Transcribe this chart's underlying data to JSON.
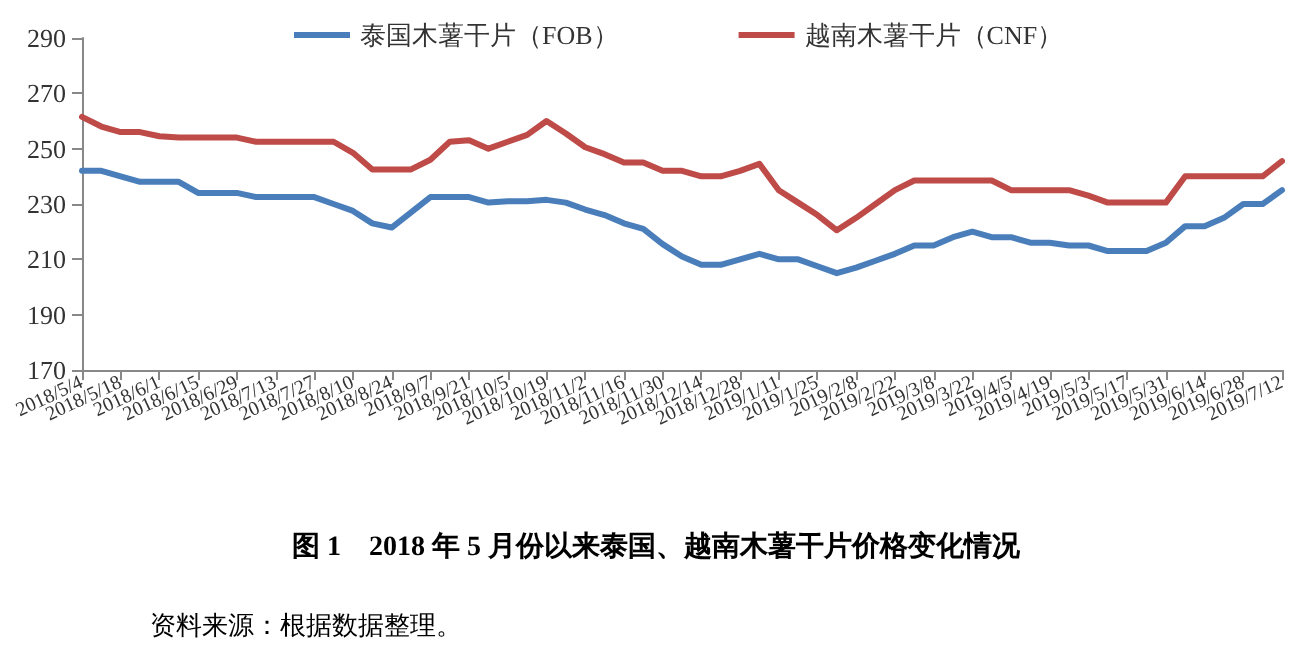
{
  "chart_data": {
    "type": "line",
    "title": "图 1　2018 年 5 月份以来泰国、越南木薯干片价格变化情况",
    "annotations": [
      "资料来源：根据数据整理。"
    ],
    "categories": [
      "2018/5/4",
      null,
      "2018/5/18",
      null,
      "2018/6/1",
      null,
      "2018/6/15",
      null,
      "2018/6/29",
      null,
      "2018/7/13",
      null,
      "2018/7/27",
      null,
      "2018/8/10",
      null,
      "2018/8/24",
      null,
      "2018/9/7",
      null,
      "2018/9/21",
      null,
      "2018/10/5",
      null,
      "2018/10/19",
      null,
      "2018/11/2",
      null,
      "2018/11/16",
      null,
      "2018/11/30",
      null,
      "2018/12/14",
      null,
      "2018/12/28",
      null,
      "2019/1/11",
      null,
      "2019/1/25",
      null,
      "2019/2/8",
      null,
      "2019/2/22",
      null,
      "2019/3/8",
      null,
      "2019/3/22",
      null,
      "2019/4/5",
      null,
      "2019/4/19",
      null,
      "2019/5/3",
      null,
      "2019/5/17",
      null,
      "2019/5/31",
      null,
      "2019/6/14",
      null,
      "2019/6/28",
      null,
      "2019/7/12"
    ],
    "series": [
      {
        "name": "泰国木薯干片（FOB）",
        "color": "#4a7ebb",
        "values": [
          242,
          242,
          240,
          238,
          238,
          238,
          234,
          234,
          234,
          232.5,
          232.5,
          232.5,
          232.5,
          230,
          227.5,
          223,
          221.5,
          227,
          232.5,
          232.5,
          232.5,
          230.5,
          231,
          231,
          231.5,
          230.5,
          228,
          226,
          223,
          221,
          215.5,
          211,
          208,
          208,
          210,
          212,
          210,
          210,
          207.5,
          205,
          207,
          209.5,
          212,
          215,
          215,
          218,
          220,
          218,
          218,
          216,
          216,
          215,
          215,
          213,
          213,
          213,
          216,
          222,
          222,
          225,
          230,
          230,
          235
        ]
      },
      {
        "name": "越南木薯干片（CNF）",
        "color": "#be4b48",
        "values": [
          261.5,
          258,
          256,
          256,
          254.5,
          254,
          254,
          254,
          254,
          252.5,
          252.5,
          252.5,
          252.5,
          252.5,
          248.5,
          242.5,
          242.5,
          242.5,
          246,
          252.5,
          253,
          250,
          252.5,
          255,
          260,
          255.5,
          250.5,
          248,
          245,
          245,
          242,
          242,
          240,
          240,
          242,
          244.5,
          235,
          230.5,
          226,
          220.5,
          225,
          230,
          235,
          238.5,
          238.5,
          238.5,
          238.5,
          238.5,
          235,
          235,
          235,
          235,
          233,
          230.5,
          230.5,
          230.5,
          230.5,
          240,
          240,
          240,
          240,
          240,
          245.5
        ]
      }
    ],
    "ylim": [
      170,
      290
    ],
    "yticks": [
      170,
      190,
      210,
      230,
      250,
      270,
      290
    ],
    "grid": false,
    "legend": "top",
    "marker": "none",
    "line_style": "solid"
  }
}
